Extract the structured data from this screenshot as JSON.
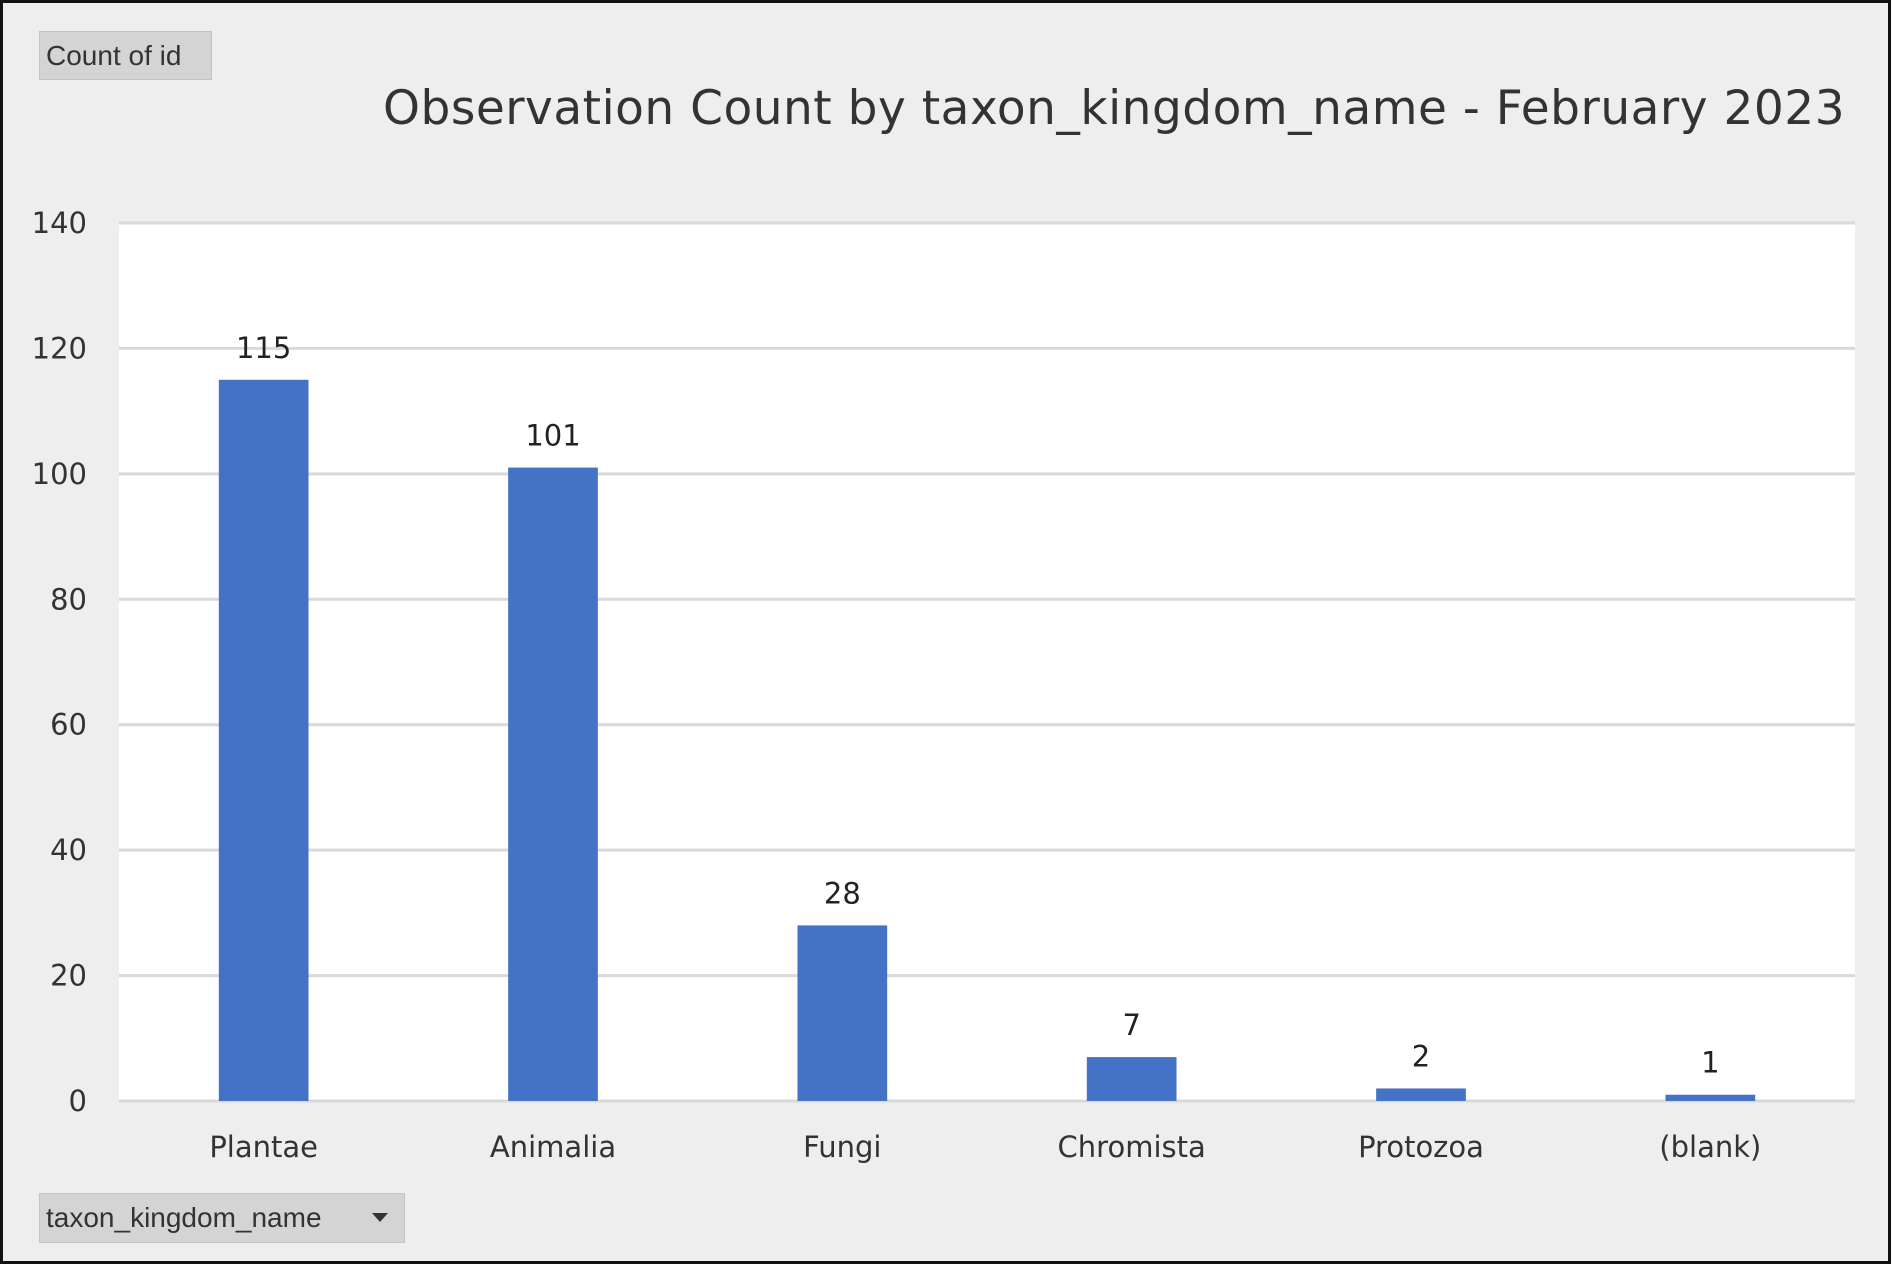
{
  "pivot": {
    "value_field": "Count of id",
    "axis_field": "taxon_kingdom_name"
  },
  "colors": {
    "bar": "#4472c4",
    "gridline": "#d9d9d9",
    "plot_bg": "#ffffff",
    "chart_bg": "#eeeeee"
  },
  "chart_data": {
    "type": "bar",
    "title": "Observation Count by taxon_kingdom_name - February 2023",
    "xlabel": "",
    "ylabel": "",
    "categories": [
      "Plantae",
      "Animalia",
      "Fungi",
      "Chromista",
      "Protozoa",
      "(blank)"
    ],
    "series": [
      {
        "values": [
          115,
          101,
          28,
          7,
          2,
          1
        ]
      }
    ],
    "ylim": [
      0,
      140
    ],
    "yticks": [
      0,
      20,
      40,
      60,
      80,
      100,
      120,
      140
    ],
    "grid": true,
    "data_labels": true,
    "legend": "none"
  }
}
